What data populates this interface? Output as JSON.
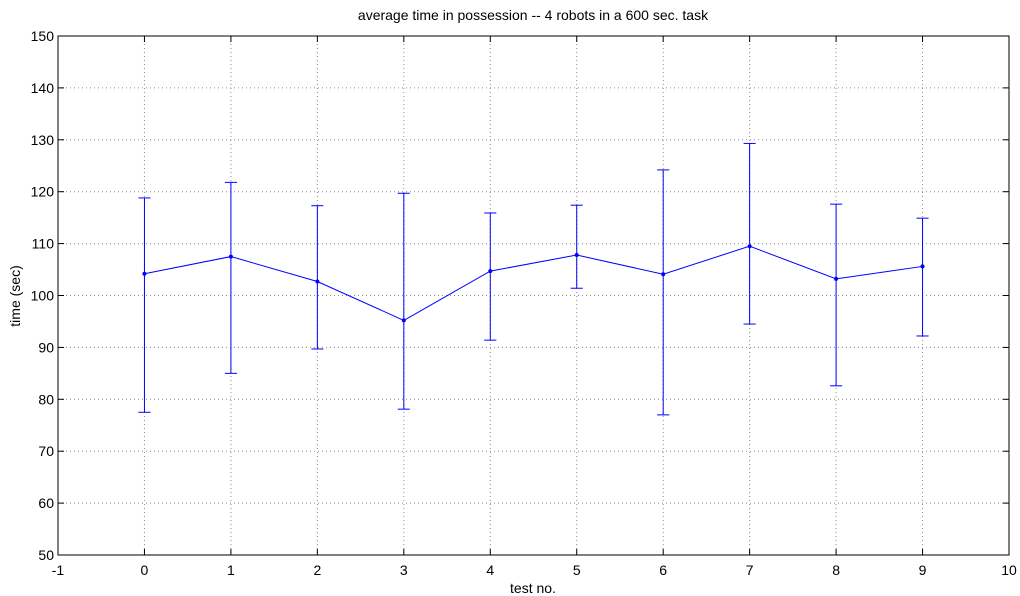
{
  "chart_data": {
    "type": "line",
    "title": "average time in possession -- 4 robots in a 600 sec. task",
    "xlabel": "test no.",
    "ylabel": "time (sec)",
    "xlim": [
      -1,
      10
    ],
    "ylim": [
      50,
      150
    ],
    "xticks": [
      -1,
      0,
      1,
      2,
      3,
      4,
      5,
      6,
      7,
      8,
      9,
      10
    ],
    "yticks": [
      50,
      60,
      70,
      80,
      90,
      100,
      110,
      120,
      130,
      140,
      150
    ],
    "grid": true,
    "series": [
      {
        "color": "#0000ff",
        "marker": "point",
        "error_bars": true,
        "x": [
          0,
          1,
          2,
          3,
          4,
          5,
          6,
          7,
          8,
          9
        ],
        "y": [
          104.2,
          107.5,
          102.7,
          95.2,
          104.7,
          107.8,
          104.1,
          109.5,
          103.2,
          105.6
        ],
        "lower": [
          77.5,
          85.0,
          89.7,
          78.1,
          91.4,
          101.4,
          77.0,
          94.5,
          82.6,
          92.2
        ],
        "upper": [
          118.8,
          121.8,
          117.3,
          119.7,
          115.9,
          117.4,
          124.2,
          129.3,
          117.6,
          114.9
        ]
      }
    ]
  }
}
